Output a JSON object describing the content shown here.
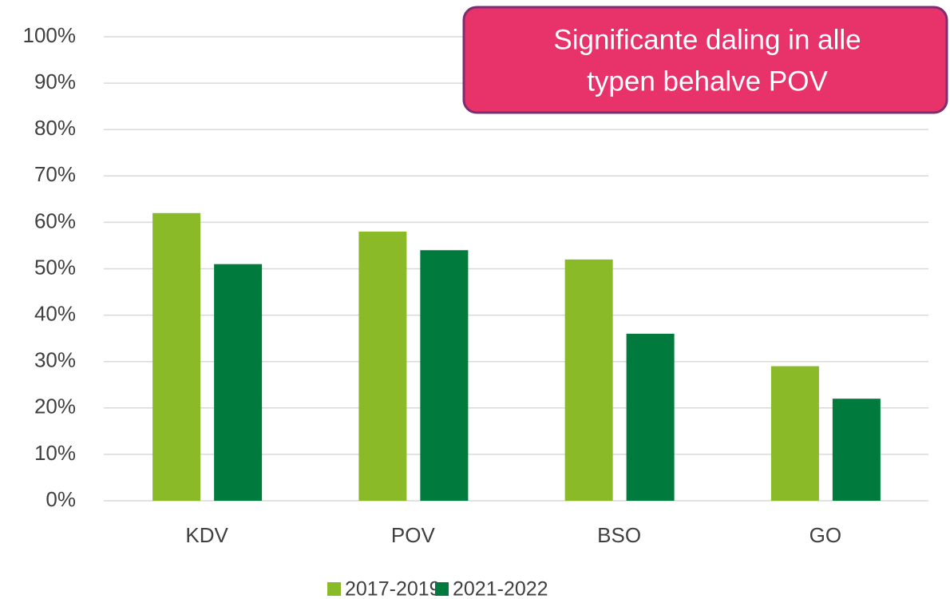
{
  "chart_data": {
    "type": "bar",
    "categories": [
      "KDV",
      "POV",
      "BSO",
      "GO"
    ],
    "series": [
      {
        "name": "2017-2019",
        "color": "#8aba27",
        "values": [
          62,
          58,
          52,
          29
        ]
      },
      {
        "name": "2021-2022",
        "color": "#007a3d",
        "values": [
          51,
          54,
          36,
          22
        ]
      }
    ],
    "ylim": [
      0,
      100
    ],
    "yticks": [
      {
        "value": 0,
        "label": "0%"
      },
      {
        "value": 10,
        "label": "10%"
      },
      {
        "value": 20,
        "label": "20%"
      },
      {
        "value": 30,
        "label": "30%"
      },
      {
        "value": 40,
        "label": "40%"
      },
      {
        "value": 50,
        "label": "50%"
      },
      {
        "value": 60,
        "label": "60%"
      },
      {
        "value": 70,
        "label": "70%"
      },
      {
        "value": 80,
        "label": "80%"
      },
      {
        "value": 90,
        "label": "90%"
      },
      {
        "value": 100,
        "label": "100%"
      }
    ],
    "grid": true,
    "legend": "bottom",
    "annotation": [
      "Significante daling in alle",
      "typen behalve POV"
    ],
    "annotation_color": "#e8336a",
    "annotation_border": "#7b2d6f"
  }
}
